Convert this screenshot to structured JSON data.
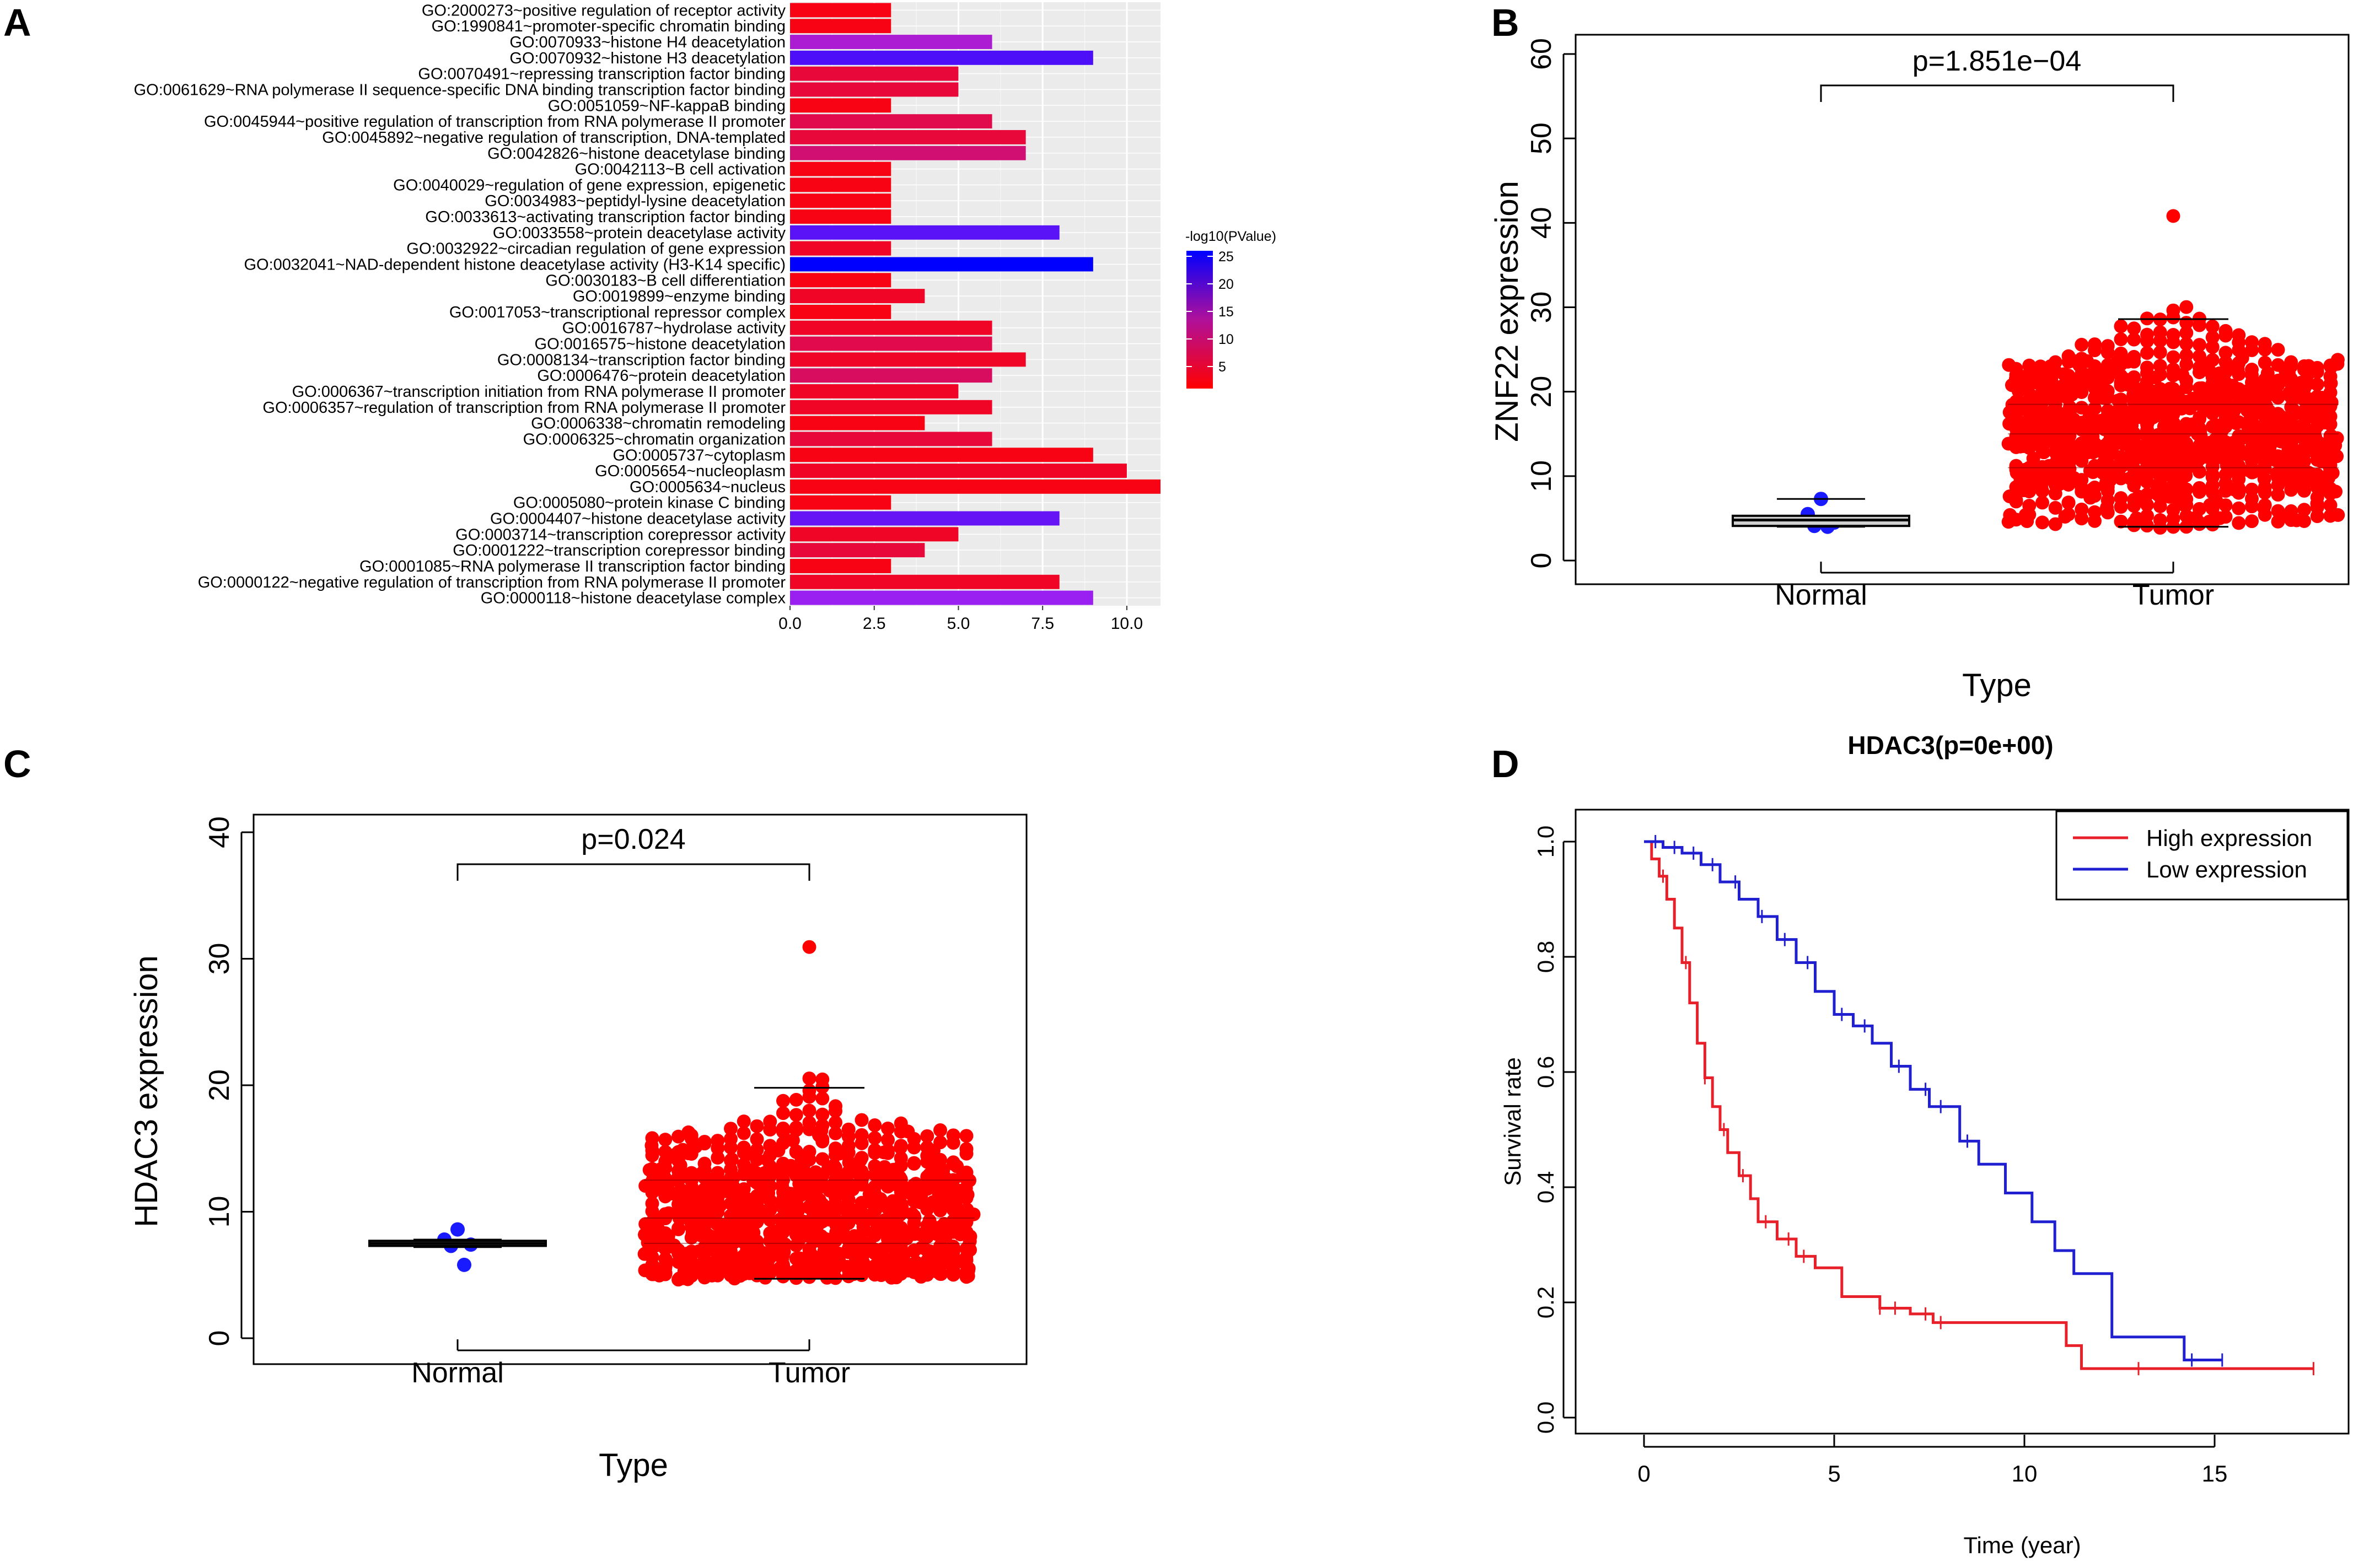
{
  "panels": {
    "a": "A",
    "b": "B",
    "c": "C",
    "d": "D"
  },
  "colors": {
    "low": "#ff0000",
    "high": "#0000ff",
    "mid": "#a020f0",
    "dot_red": "#ff0000",
    "dot_blue": "#1a1aff",
    "km_high": "#e8202a",
    "km_low": "#2020d0"
  },
  "chart_data": [
    {
      "id": "A",
      "type": "bar",
      "orientation": "horizontal",
      "xlabel": "",
      "ylabel": "",
      "xlim": [
        0,
        11
      ],
      "xticks": [
        "0.0",
        "2.5",
        "5.0",
        "7.5",
        "10.0"
      ],
      "xtick_values": [
        0,
        2.5,
        5,
        7.5,
        10
      ],
      "legend_title": "-log10(PValue)",
      "legend_ticks": [
        "25",
        "20",
        "15",
        "10",
        "5"
      ],
      "legend_tick_values": [
        25,
        20,
        15,
        10,
        5
      ],
      "color_range": [
        1,
        26
      ],
      "categories": [
        "GO:2000273~positive regulation of receptor activity",
        "GO:1990841~promoter-specific chromatin binding",
        "GO:0070933~histone H4 deacetylation",
        "GO:0070932~histone H3 deacetylation",
        "GO:0070491~repressing transcription factor binding",
        "GO:0061629~RNA polymerase II sequence-specific DNA binding transcription factor binding",
        "GO:0051059~NF-kappaB binding",
        "GO:0045944~positive regulation of transcription from RNA polymerase II promoter",
        "GO:0045892~negative regulation of transcription, DNA-templated",
        "GO:0042826~histone deacetylase binding",
        "GO:0042113~B cell activation",
        "GO:0040029~regulation of gene expression, epigenetic",
        "GO:0034983~peptidyl-lysine deacetylation",
        "GO:0033613~activating transcription factor binding",
        "GO:0033558~protein deacetylase activity",
        "GO:0032922~circadian regulation of gene expression",
        "GO:0032041~NAD-dependent histone deacetylase activity (H3-K14 specific)",
        "GO:0030183~B cell differentiation",
        "GO:0019899~enzyme binding",
        "GO:0017053~transcriptional repressor complex",
        "GO:0016787~hydrolase activity",
        "GO:0016575~histone deacetylation",
        "GO:0008134~transcription factor binding",
        "GO:0006476~protein deacetylation",
        "GO:0006367~transcription initiation from RNA polymerase II promoter",
        "GO:0006357~regulation of transcription from RNA polymerase II promoter",
        "GO:0006338~chromatin remodeling",
        "GO:0006325~chromatin organization",
        "GO:0005737~cytoplasm",
        "GO:0005654~nucleoplasm",
        "GO:0005634~nucleus",
        "GO:0005080~protein kinase C binding",
        "GO:0004407~histone deacetylase activity",
        "GO:0003714~transcription corepressor activity",
        "GO:0001222~transcription corepressor binding",
        "GO:0001085~RNA polymerase II transcription factor binding",
        "GO:0000122~negative regulation of transcription from RNA polymerase II promoter",
        "GO:0000118~histone deacetylase complex"
      ],
      "values": [
        3,
        3,
        6,
        9,
        5,
        5,
        3,
        6,
        7,
        7,
        3,
        3,
        3,
        3,
        8,
        3,
        9,
        3,
        4,
        3,
        6,
        6,
        7,
        6,
        5,
        6,
        4,
        6,
        9,
        10,
        11,
        3,
        8,
        5,
        4,
        3,
        8,
        9
      ],
      "pvalue_log": [
        2,
        2,
        12,
        20,
        4,
        4,
        2,
        5,
        4,
        7,
        2,
        2,
        2,
        2,
        19,
        3,
        26,
        2,
        3,
        2,
        3,
        5,
        3,
        6,
        3,
        3,
        2,
        4,
        2,
        3,
        2,
        2,
        18,
        3,
        4,
        2,
        3,
        14
      ]
    },
    {
      "id": "B",
      "type": "scatter",
      "subtype": "beeswarm",
      "title": "p=1.851e−04",
      "xlabel": "Type",
      "ylabel": "ZNF22 expression",
      "ylim": [
        0,
        60
      ],
      "yticks": [
        "0",
        "10",
        "20",
        "30",
        "40",
        "50",
        "60"
      ],
      "ytick_values": [
        0,
        10,
        20,
        30,
        40,
        50,
        60
      ],
      "categories": [
        "Normal",
        "Tumor"
      ],
      "normal": {
        "min": 4.0,
        "q1": 4.1,
        "median": 4.8,
        "q3": 5.3,
        "max": 7.3,
        "points": [
          7.3,
          5.5,
          4.5,
          4.1,
          4.0
        ]
      },
      "tumor": {
        "min": 4.0,
        "q1": 11.0,
        "median": 15.0,
        "q3": 18.5,
        "max": 28.6,
        "n": 1000,
        "max_point": 41.0
      }
    },
    {
      "id": "C",
      "type": "scatter",
      "subtype": "beeswarm",
      "title": "p=0.024",
      "xlabel": "Type",
      "ylabel": "HDAC3 expression",
      "ylim": [
        0,
        40
      ],
      "yticks": [
        "0",
        "10",
        "20",
        "30",
        "40"
      ],
      "ytick_values": [
        0,
        10,
        20,
        30,
        40
      ],
      "categories": [
        "Normal",
        "Tumor"
      ],
      "normal": {
        "min": 7.2,
        "q1": 7.3,
        "median": 7.5,
        "q3": 7.7,
        "max": 7.8,
        "points": [
          8.6,
          7.8,
          7.4,
          7.3,
          5.8
        ]
      },
      "tumor": {
        "min": 4.7,
        "q1": 7.5,
        "median": 9.5,
        "q3": 12.5,
        "max": 19.8,
        "n": 900,
        "max_point": 30.8
      }
    },
    {
      "id": "D",
      "type": "line",
      "subtype": "kaplan-meier",
      "title": "HDAC3(p=0e+00)",
      "xlabel": "Time (year)",
      "ylabel": "Survival rate",
      "xlim": [
        0,
        18
      ],
      "ylim": [
        0,
        1
      ],
      "xticks": [
        "0",
        "5",
        "10",
        "15"
      ],
      "xtick_values": [
        0,
        5,
        10,
        15
      ],
      "yticks": [
        "0.0",
        "0.2",
        "0.4",
        "0.6",
        "0.8",
        "1.0"
      ],
      "ytick_values": [
        0,
        0.2,
        0.4,
        0.6,
        0.8,
        1.0
      ],
      "legend": [
        "High expression",
        "Low expression"
      ],
      "legend_position": "top-right",
      "series": [
        {
          "name": "High expression",
          "x": [
            0,
            0.2,
            0.4,
            0.6,
            0.8,
            1.0,
            1.2,
            1.4,
            1.6,
            1.8,
            2.0,
            2.2,
            2.5,
            2.8,
            3.0,
            3.5,
            4.0,
            4.5,
            5.0,
            5.2,
            6.2,
            7.0,
            7.6,
            11.1,
            11.5,
            17.6
          ],
          "y": [
            1.0,
            0.97,
            0.94,
            0.9,
            0.85,
            0.79,
            0.72,
            0.65,
            0.59,
            0.54,
            0.5,
            0.46,
            0.42,
            0.38,
            0.34,
            0.31,
            0.28,
            0.26,
            0.26,
            0.21,
            0.19,
            0.18,
            0.165,
            0.125,
            0.085,
            0.085
          ],
          "censor_x": [
            0.5,
            1.1,
            1.6,
            2.1,
            2.6,
            3.2,
            3.8,
            4.2,
            6.2,
            6.6,
            7.4,
            7.8,
            13.0,
            17.6
          ]
        },
        {
          "name": "Low expression",
          "x": [
            0,
            0.5,
            1.0,
            1.5,
            2.0,
            2.5,
            3.0,
            3.5,
            4.0,
            4.5,
            5.0,
            5.5,
            6.0,
            6.5,
            7.0,
            7.5,
            8.0,
            8.3,
            8.8,
            9.5,
            10.2,
            10.8,
            11.3,
            12.1,
            12.3,
            14.2,
            15.2
          ],
          "y": [
            1.0,
            0.99,
            0.98,
            0.96,
            0.93,
            0.9,
            0.87,
            0.83,
            0.79,
            0.74,
            0.7,
            0.68,
            0.65,
            0.61,
            0.57,
            0.54,
            0.54,
            0.48,
            0.44,
            0.39,
            0.34,
            0.29,
            0.25,
            0.25,
            0.14,
            0.1,
            0.1
          ],
          "censor_x": [
            0.3,
            0.8,
            1.3,
            1.8,
            2.4,
            3.1,
            3.7,
            4.3,
            5.2,
            5.8,
            6.7,
            7.4,
            7.8,
            8.5,
            14.4,
            15.2
          ]
        }
      ]
    }
  ]
}
